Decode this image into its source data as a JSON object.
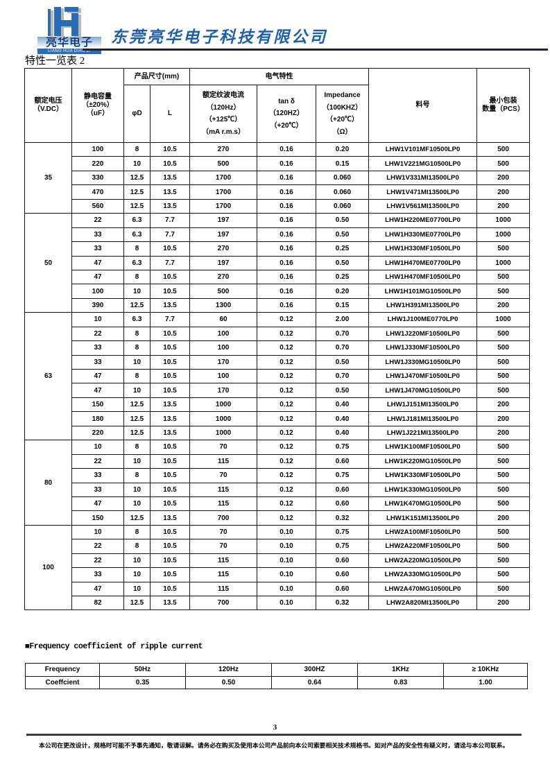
{
  "header": {
    "logo": {
      "mark": "LH-monogram",
      "name_cn": "亮华电子",
      "name_en": "LIANG HUA DIAN ZI"
    },
    "company_name": "东莞亮华电子科技有限公司",
    "page_title": "特性一览表 2"
  },
  "colors": {
    "brand_blue": "#1f5fa6",
    "logo_blue": "#2a6db5",
    "border": "#141414"
  },
  "spec_table": {
    "headers": {
      "voltage_l1": "额定电压",
      "voltage_l2": "（V.DC）",
      "capacitance_l1": "静电容量",
      "capacitance_l2": "（±20%）",
      "capacitance_l3": "（uF）",
      "size_group": "产品尺寸(mm)",
      "diameter": "φD",
      "length": "L",
      "electrical_group": "电气特性",
      "ripple_l1": "额定纹波电流",
      "ripple_l2": "（120Hz）",
      "ripple_l3": "（+125℃）",
      "ripple_l4": "（mA r.m.s）",
      "tan_l1": "tan δ",
      "tan_l2": "（120HZ）",
      "tan_l3": "（+20℃）",
      "imp_l1": "Impedance",
      "imp_l2": "（100KHZ）",
      "imp_l3": "（+20℃）",
      "imp_l4": "（Ω）",
      "part_no": "料号",
      "min_pack_l1": "最小包装",
      "min_pack_l2": "数量（PCS）"
    },
    "groups": [
      {
        "voltage": "35",
        "rows": [
          [
            "100",
            "8",
            "10.5",
            "270",
            "0.16",
            "0.20",
            "LHW1V101MF10500LP0",
            "500"
          ],
          [
            "220",
            "10",
            "10.5",
            "500",
            "0.16",
            "0.15",
            "LHW1V221MG10500LP0",
            "500"
          ],
          [
            "330",
            "12.5",
            "13.5",
            "1700",
            "0.16",
            "0.060",
            "LHW1V331MI13500LP0",
            "200"
          ],
          [
            "470",
            "12.5",
            "13.5",
            "1700",
            "0.16",
            "0.060",
            "LHW1V471MI13500LP0",
            "200"
          ],
          [
            "560",
            "12.5",
            "13.5",
            "1700",
            "0.16",
            "0.060",
            "LHW1V561MI13500LP0",
            "200"
          ]
        ]
      },
      {
        "voltage": "50",
        "rows": [
          [
            "22",
            "6.3",
            "7.7",
            "197",
            "0.16",
            "0.50",
            "LHW1H220ME07700LP0",
            "1000"
          ],
          [
            "33",
            "6.3",
            "7.7",
            "197",
            "0.16",
            "0.50",
            "LHW1H330ME07700LP0",
            "1000"
          ],
          [
            "33",
            "8",
            "10.5",
            "270",
            "0.16",
            "0.25",
            "LHW1H330MF10500LP0",
            "500"
          ],
          [
            "47",
            "6.3",
            "7.7",
            "197",
            "0.16",
            "0.50",
            "LHW1H470ME07700LP0",
            "1000"
          ],
          [
            "47",
            "8",
            "10.5",
            "270",
            "0.16",
            "0.25",
            "LHW1H470MF10500LP0",
            "500"
          ],
          [
            "100",
            "10",
            "10.5",
            "500",
            "0.16",
            "0.20",
            "LHW1H101MG10500LP0",
            "500"
          ],
          [
            "390",
            "12.5",
            "13.5",
            "1300",
            "0.16",
            "0.15",
            "LHW1H391MI13500LP0",
            "200"
          ]
        ]
      },
      {
        "voltage": "63",
        "rows": [
          [
            "10",
            "6.3",
            "7.7",
            "60",
            "0.12",
            "2.00",
            "LHW1J100ME0770LP0",
            "1000"
          ],
          [
            "22",
            "8",
            "10.5",
            "100",
            "0.12",
            "0.70",
            "LHW1J220MF10500LP0",
            "500"
          ],
          [
            "33",
            "8",
            "10.5",
            "100",
            "0.12",
            "0.70",
            "LHW1J330MF10500LP0",
            "500"
          ],
          [
            "33",
            "10",
            "10.5",
            "170",
            "0.12",
            "0.50",
            "LHW1J330MG10500LP0",
            "500"
          ],
          [
            "47",
            "8",
            "10.5",
            "100",
            "0.12",
            "0.70",
            "LHW1J470MF10500LP0",
            "500"
          ],
          [
            "47",
            "10",
            "10.5",
            "170",
            "0.12",
            "0.50",
            "LHW1J470MG10500LP0",
            "500"
          ],
          [
            "150",
            "12.5",
            "13.5",
            "1000",
            "0.12",
            "0.40",
            "LHW1J151MI13500LP0",
            "200"
          ],
          [
            "180",
            "12.5",
            "13.5",
            "1000",
            "0.12",
            "0.40",
            "LHW1J181MI13500LP0",
            "200"
          ],
          [
            "220",
            "12.5",
            "13.5",
            "1000",
            "0.12",
            "0.40",
            "LHW1J221MI13500LP0",
            "200"
          ]
        ]
      },
      {
        "voltage": "80",
        "rows": [
          [
            "10",
            "8",
            "10.5",
            "70",
            "0.12",
            "0.75",
            "LHW1K100MF10500LP0",
            "500"
          ],
          [
            "22",
            "10",
            "10.5",
            "115",
            "0.12",
            "0.60",
            "LHW1K220MG10500LP0",
            "500"
          ],
          [
            "33",
            "8",
            "10.5",
            "70",
            "0.12",
            "0.75",
            "LHW1K330MF10500LP0",
            "500"
          ],
          [
            "33",
            "10",
            "10.5",
            "115",
            "0.12",
            "0.60",
            "LHW1K330MG10500LP0",
            "500"
          ],
          [
            "47",
            "10",
            "10.5",
            "115",
            "0.12",
            "0.60",
            "LHW1K470MG10500LP0",
            "500"
          ],
          [
            "150",
            "12.5",
            "13.5",
            "700",
            "0.12",
            "0.32",
            "LHW1K151MI13500LP0",
            "200"
          ]
        ]
      },
      {
        "voltage": "100",
        "rows": [
          [
            "10",
            "8",
            "10.5",
            "70",
            "0.10",
            "0.75",
            "LHW2A100MF10500LP0",
            "500"
          ],
          [
            "22",
            "8",
            "10.5",
            "70",
            "0.10",
            "0.75",
            "LHW2A220MF10500LP0",
            "500"
          ],
          [
            "22",
            "10",
            "10.5",
            "115",
            "0.10",
            "0.60",
            "LHW2A220MG10500LP0",
            "500"
          ],
          [
            "33",
            "10",
            "10.5",
            "115",
            "0.10",
            "0.60",
            "LHW2A330MG10500LP0",
            "500"
          ],
          [
            "47",
            "10",
            "10.5",
            "115",
            "0.10",
            "0.60",
            "LHW2A470MG10500LP0",
            "500"
          ],
          [
            "82",
            "12.5",
            "13.5",
            "700",
            "0.10",
            "0.32",
            "LHW2A820MI13500LP0",
            "200"
          ]
        ]
      }
    ]
  },
  "frequency_section": {
    "heading": "■Frequency coefficient of ripple current",
    "row1_label": "Frequency",
    "row2_label": "Coeffcient",
    "frequencies": [
      "50Hz",
      "120Hz",
      "300HZ",
      "1KHz",
      "≥ 10KHz"
    ],
    "coefficients": [
      "0.35",
      "0.50",
      "0.64",
      "0.83",
      "1.00"
    ]
  },
  "footer": {
    "page_number": "3",
    "disclaimer": "本公司在更改设计，规格时可能不予事先通知，敬请谅解。请务必在购买及使用本公司产品前向本公司索要相关技术规格书。如对产品的安全性有疑义时，请迳与本公司联系。"
  }
}
